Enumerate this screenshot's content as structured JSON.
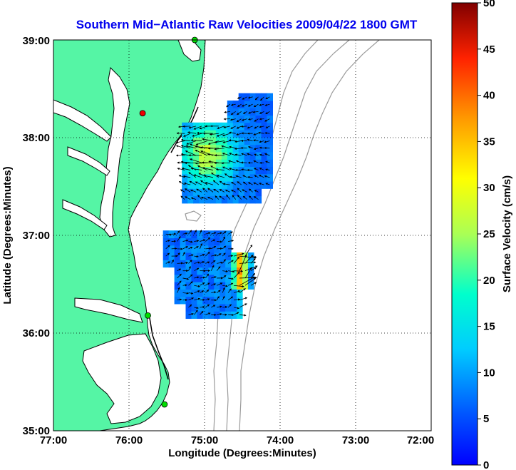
{
  "title": "Southern Mid−Atlantic Raw Velocities 2009/04/22 1800 GMT",
  "xlabel": "Longitude (Degrees:Minutes)",
  "ylabel": "Latitude (Degrees:Minutes)",
  "colorbar_label": "Surface Velocity (cm/s)",
  "x_ticks": [
    {
      "value": -77,
      "label": "77:00"
    },
    {
      "value": -76,
      "label": "76:00"
    },
    {
      "value": -75,
      "label": "75:00"
    },
    {
      "value": -74,
      "label": "74:00"
    },
    {
      "value": -73,
      "label": "73:00"
    },
    {
      "value": -72,
      "label": "72:00"
    }
  ],
  "y_ticks": [
    {
      "value": 35,
      "label": "35:00"
    },
    {
      "value": 36,
      "label": "36:00"
    },
    {
      "value": 37,
      "label": "37:00"
    },
    {
      "value": 38,
      "label": "38:00"
    },
    {
      "value": 39,
      "label": "39:00"
    }
  ],
  "colorbar_ticks": [
    "0",
    "5",
    "10",
    "15",
    "20",
    "25",
    "30",
    "35",
    "40",
    "45",
    "50"
  ],
  "colors": {
    "land": "#55f5a5",
    "coast": "#000000",
    "bathymetry": "#9a9a9a",
    "title": "#0000ee",
    "station_active": "#00dd00",
    "station_offline": "#ee0000"
  },
  "chart_data": {
    "type": "map",
    "xlim": [
      -77,
      -72
    ],
    "ylim": [
      35,
      39
    ],
    "colorbar": {
      "min": 0,
      "max": 50,
      "units": "cm/s",
      "colormap": "jet"
    },
    "stations": [
      {
        "lon": -75.13,
        "lat": 39.0,
        "status": "active"
      },
      {
        "lon": -75.82,
        "lat": 38.25,
        "status": "offline"
      },
      {
        "lon": -75.75,
        "lat": 36.18,
        "status": "active"
      },
      {
        "lon": -75.53,
        "lat": 35.27,
        "status": "active"
      }
    ],
    "velocity_regions": [
      {
        "name": "north",
        "lon": [
          -75.3,
          -74.1
        ],
        "lat": [
          37.33,
          38.45
        ],
        "speed_range_cms": [
          5,
          25
        ]
      },
      {
        "name": "south",
        "lon": [
          -75.55,
          -74.4
        ],
        "lat": [
          36.15,
          37.0
        ],
        "speed_range_cms": [
          5,
          35
        ]
      }
    ]
  }
}
